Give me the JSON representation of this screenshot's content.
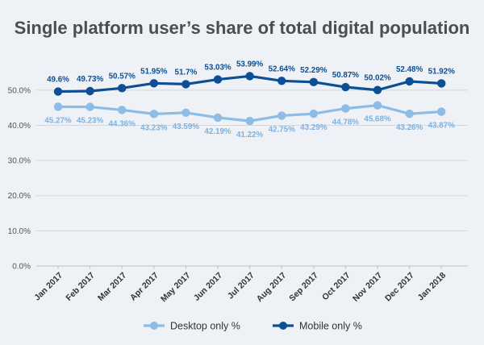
{
  "chart_data": {
    "type": "line",
    "title": "Single platform user’s share of total digital population",
    "categories": [
      "Jan 2017",
      "Feb 2017",
      "Mar 2017",
      "Apr 2017",
      "May 2017",
      "Jun 2017",
      "Jul 2017",
      "Aug 2017",
      "Sep 2017",
      "Oct 2017",
      "Nov 2017",
      "Dec 2017",
      "Jan 2018"
    ],
    "series": [
      {
        "name": "Desktop only %",
        "color": "#8dbce6",
        "values": [
          45.27,
          45.23,
          44.36,
          43.23,
          43.59,
          42.19,
          41.22,
          42.75,
          43.29,
          44.78,
          45.68,
          43.26,
          43.87
        ],
        "labels": [
          "45.27%",
          "45.23%",
          "44.36%",
          "43.23%",
          "43.59%",
          "42.19%",
          "41.22%",
          "42.75%",
          "43.29%",
          "44.78%",
          "45.68%",
          "43.26%",
          "43.87%"
        ]
      },
      {
        "name": "Mobile only %",
        "color": "#0c4f94",
        "values": [
          49.6,
          49.73,
          50.57,
          51.95,
          51.7,
          53.03,
          53.99,
          52.64,
          52.29,
          50.87,
          50.02,
          52.48,
          51.92
        ],
        "labels": [
          "49.6%",
          "49.73%",
          "50.57%",
          "51.95%",
          "51.7%",
          "53.03%",
          "53.99%",
          "52.64%",
          "52.29%",
          "50.87%",
          "50.02%",
          "52.48%",
          "51.92%"
        ]
      }
    ],
    "yticks": [
      "0.0%",
      "10.0%",
      "20.0%",
      "30.0%",
      "40.0%",
      "50.0%"
    ],
    "ylim": [
      0,
      55
    ],
    "grid": true,
    "legend": "bottom-center",
    "xlabel": "",
    "ylabel": ""
  }
}
